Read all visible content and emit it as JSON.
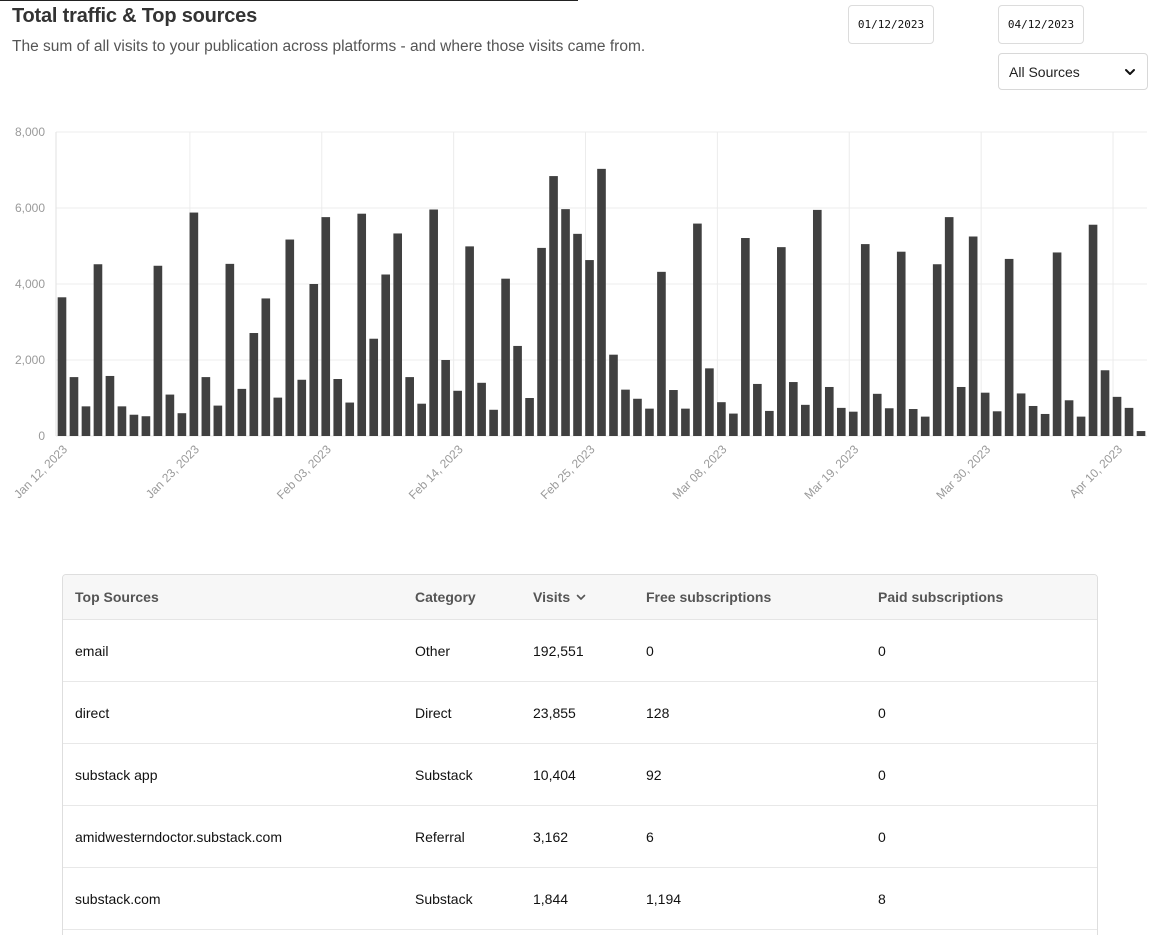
{
  "header": {
    "title": "Total traffic & Top sources",
    "subtitle": "The sum of all visits to your publication across platforms - and where those visits came from."
  },
  "filters": {
    "start_date": "01/12/2023",
    "end_date": "04/12/2023",
    "source_select": "All Sources"
  },
  "icons": {
    "select_caret": "chevron-down-icon",
    "sort": "chevron-down-icon"
  },
  "colors": {
    "bar": "#404040",
    "grid": "#ececec",
    "axis_text": "#9a9a9a"
  },
  "chart_data": {
    "type": "bar",
    "title": "Total traffic",
    "xlabel": "",
    "ylabel": "",
    "ylim": [
      0,
      8000
    ],
    "yticks": [
      "0",
      "2,000",
      "4,000",
      "6,000",
      "8,000"
    ],
    "ytick_values": [
      0,
      2000,
      4000,
      6000,
      8000
    ],
    "x_tick_labels": [
      "Jan 12, 2023",
      "Jan 23, 2023",
      "Feb 03, 2023",
      "Feb 14, 2023",
      "Feb 25, 2023",
      "Mar 08, 2023",
      "Mar 19, 2023",
      "Mar 30, 2023",
      "Apr 10, 2023"
    ],
    "x_tick_every": 11,
    "start_date": "2023-01-12",
    "values": [
      3650,
      1550,
      780,
      4520,
      1580,
      780,
      560,
      520,
      4480,
      1090,
      600,
      5880,
      1550,
      800,
      4530,
      1240,
      2710,
      3620,
      1010,
      5170,
      1480,
      4000,
      5760,
      1500,
      880,
      5850,
      2560,
      4250,
      5330,
      1550,
      850,
      5960,
      2000,
      1190,
      4990,
      1400,
      690,
      4140,
      2370,
      1000,
      4950,
      6840,
      5970,
      5320,
      4630,
      7030,
      2140,
      1220,
      980,
      720,
      4320,
      1210,
      720,
      5590,
      1780,
      890,
      590,
      5210,
      1370,
      660,
      4970,
      1420,
      820,
      5950,
      1290,
      740,
      640,
      5050,
      1110,
      730,
      4850,
      710,
      510,
      4520,
      5760,
      1290,
      5250,
      1140,
      650,
      4660,
      1120,
      790,
      580,
      4830,
      940,
      510,
      5560,
      1730,
      1030,
      740,
      130
    ]
  },
  "table": {
    "columns": [
      "Top Sources",
      "Category",
      "Visits",
      "Free subscriptions",
      "Paid subscriptions"
    ],
    "rows": [
      [
        "email",
        "Other",
        "192,551",
        "0",
        "0"
      ],
      [
        "direct",
        "Direct",
        "23,855",
        "128",
        "0"
      ],
      [
        "substack app",
        "Substack",
        "10,404",
        "92",
        "0"
      ],
      [
        "amidwesterndoctor.substack.com",
        "Referral",
        "3,162",
        "6",
        "0"
      ],
      [
        "substack.com",
        "Substack",
        "1,844",
        "1,194",
        "8"
      ]
    ]
  }
}
